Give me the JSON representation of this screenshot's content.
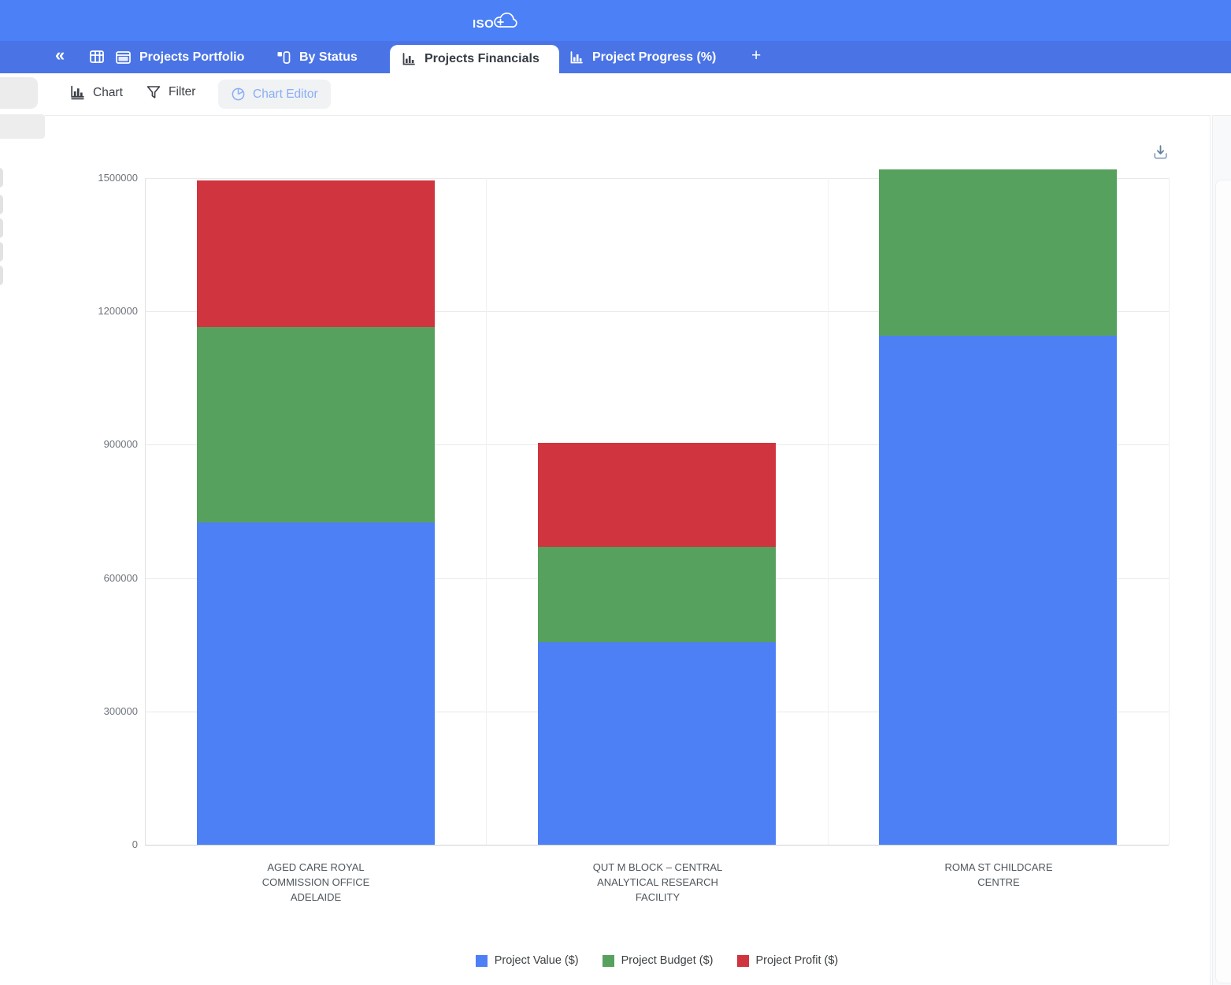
{
  "app": {
    "logo_text": "ISO",
    "logo_plus": "+"
  },
  "colors": {
    "header_bar": "#4b80f7",
    "tab_bar": "#4a74e6",
    "active_tab_text": "#343b43",
    "chart_editor_text": "#8aadf5"
  },
  "icons": {
    "logo": "cloud-plus-icon",
    "collapse": "chevron-double-left-icon",
    "views": "table-grid-icon",
    "portfolio_tab": "spreadsheet-icon",
    "by_status_tab": "kanban-icon",
    "financials_tab": "bar-chart-icon",
    "progress_tab": "bar-chart-icon",
    "chart_tool": "bar-chart-icon",
    "filter_tool": "funnel-icon",
    "chart_editor_tool": "pie-chart-icon",
    "export": "download-icon"
  },
  "tab_bar": {
    "tabs": [
      {
        "label": "Projects Portfolio",
        "active": false
      },
      {
        "label": "By Status",
        "active": false
      },
      {
        "label": "Projects Financials",
        "active": true
      },
      {
        "label": "Project Progress (%)",
        "active": false
      }
    ],
    "add_tab_label": "+"
  },
  "toolbar": {
    "chart_label": "Chart",
    "filter_label": "Filter",
    "chart_editor_label": "Chart Editor"
  },
  "chart_data": {
    "type": "bar",
    "stacked": true,
    "title": "",
    "xlabel": "",
    "ylabel": "",
    "grid": true,
    "legend_position": "bottom",
    "ylim": [
      0,
      1500000
    ],
    "yticks": [
      0,
      300000,
      600000,
      900000,
      1200000,
      1500000
    ],
    "categories": [
      "AGED CARE ROYAL COMMISSION OFFICE ADELAIDE",
      "QUT M BLOCK – CENTRAL ANALYTICAL RESEARCH FACILITY",
      "ROMA ST CHILDCARE CENTRE"
    ],
    "category_lines": [
      [
        "AGED CARE ROYAL",
        "COMMISSION OFFICE",
        "ADELAIDE"
      ],
      [
        "QUT M BLOCK – CENTRAL",
        "ANALYTICAL RESEARCH",
        "FACILITY"
      ],
      [
        "ROMA ST CHILDCARE",
        "CENTRE"
      ]
    ],
    "series": [
      {
        "name": "Project Value ($)",
        "color": "#4d80f5",
        "values": [
          725000,
          455000,
          1145000
        ]
      },
      {
        "name": "Project Budget ($)",
        "color": "#57a15e",
        "values": [
          440000,
          215000,
          375000
        ]
      },
      {
        "name": "Project Profit ($)",
        "color": "#d0343f",
        "values": [
          330000,
          235000,
          0
        ]
      }
    ]
  }
}
